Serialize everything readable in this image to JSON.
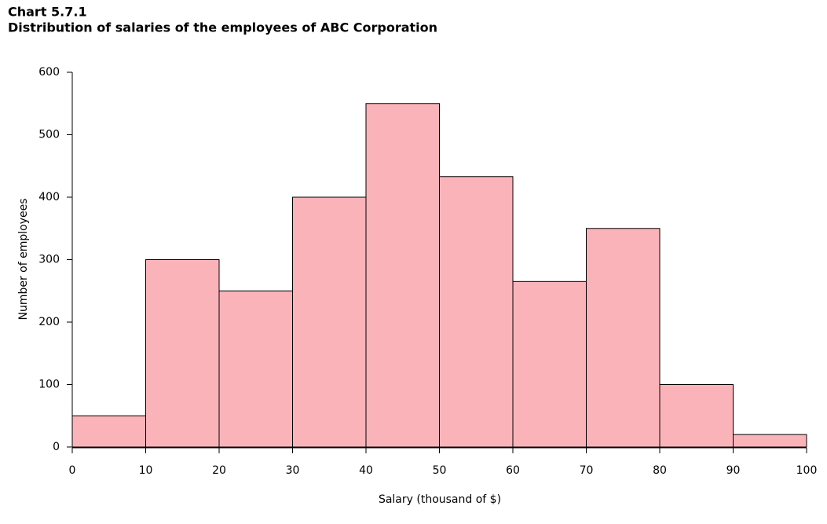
{
  "chart_data": {
    "type": "histogram",
    "title": "Chart 5.7.1",
    "subtitle": "Distribution of salaries of the employees of ABC Corporation",
    "x_label": "Salary (thousand of $)",
    "y_label": "Number of employees",
    "bins": [
      0,
      10,
      20,
      30,
      40,
      50,
      60,
      70,
      80,
      90,
      100
    ],
    "values": [
      50,
      300,
      250,
      400,
      550,
      433,
      265,
      350,
      100,
      20
    ],
    "color": "#fbb3ba",
    "edge_color": "#000000",
    "xlim": [
      0,
      100
    ],
    "xticks": [
      0,
      10,
      20,
      30,
      40,
      50,
      60,
      70,
      80,
      90,
      100
    ],
    "ylim": [
      0,
      600
    ],
    "yticks": [
      0,
      100,
      200,
      300,
      400,
      500,
      600
    ]
  }
}
